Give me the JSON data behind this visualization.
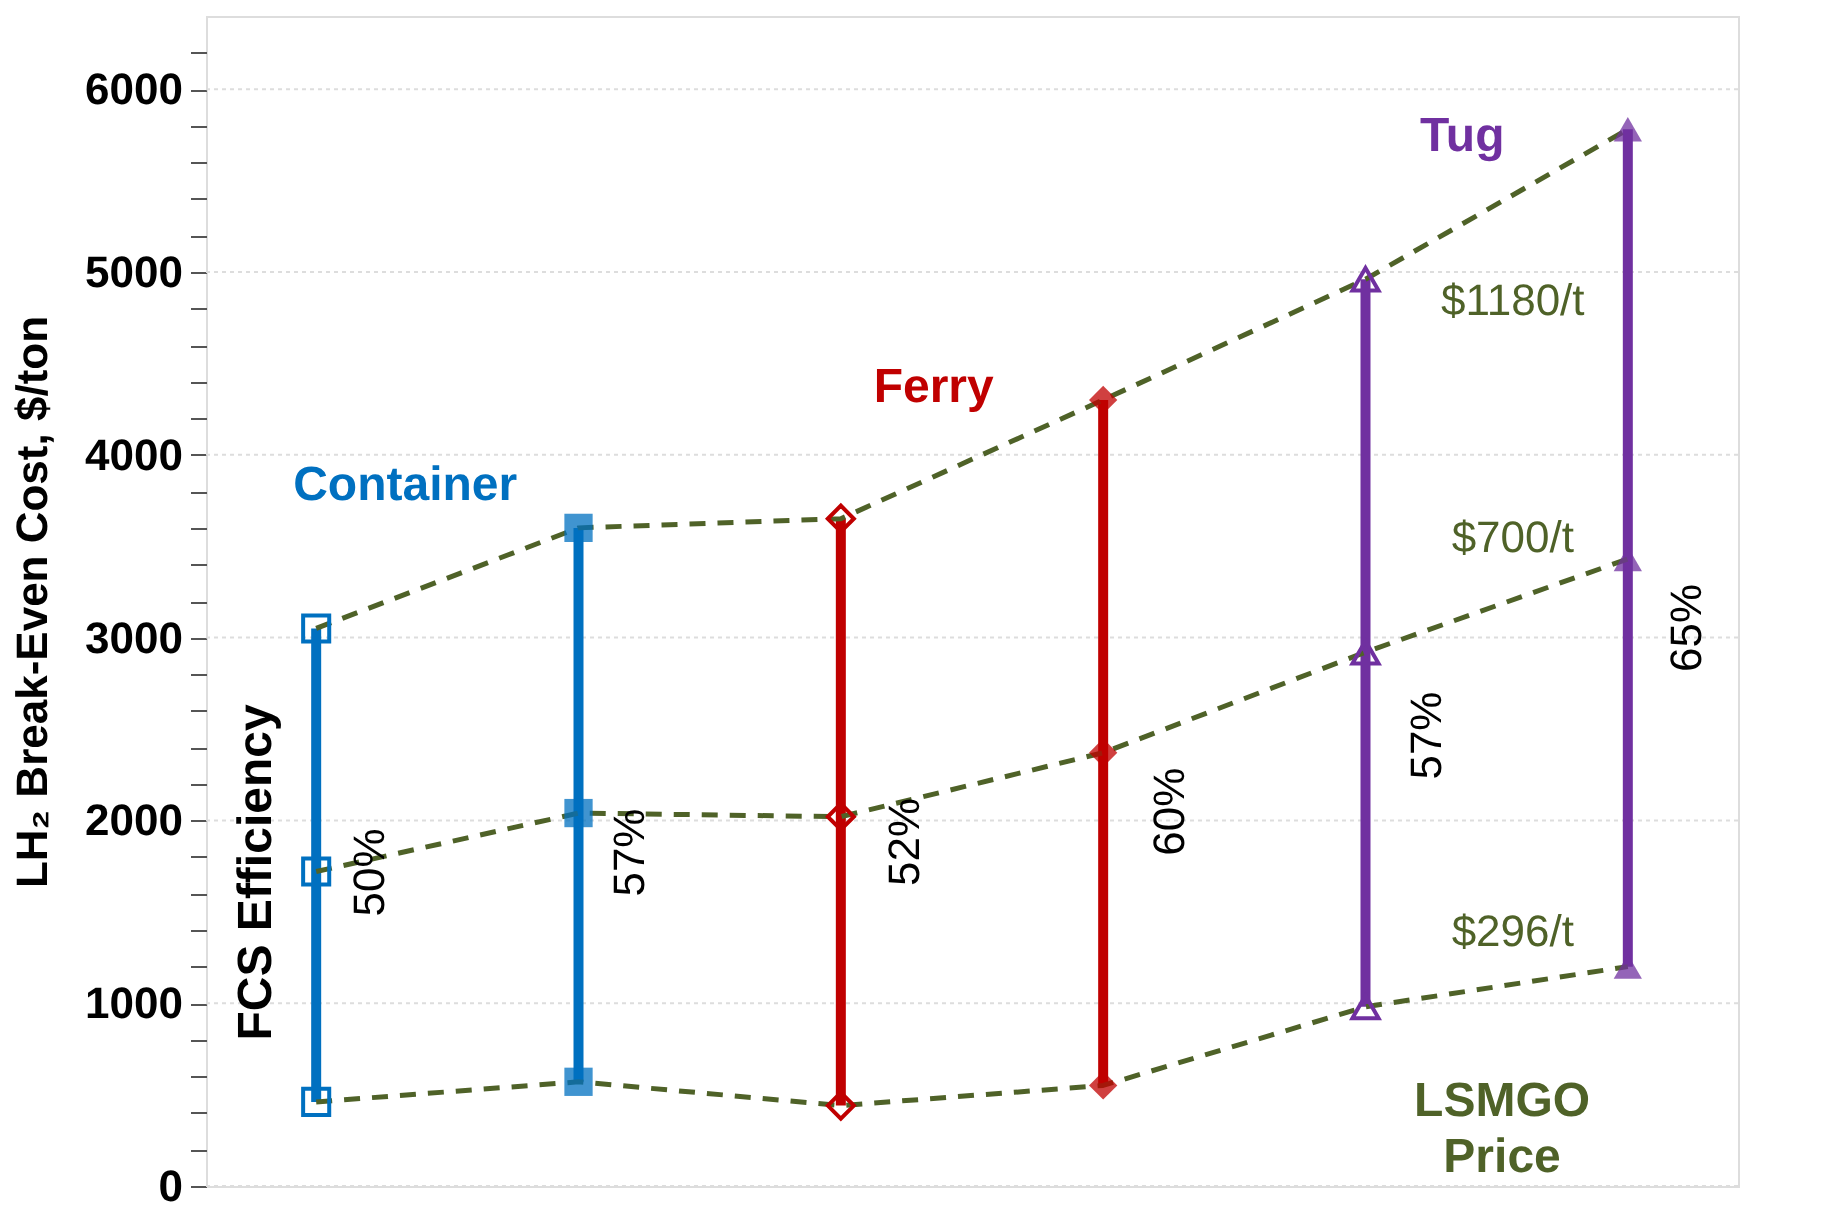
{
  "chart_data": {
    "type": "line",
    "ylabel": "LH₂ Break-Even Cost, $/ton",
    "categories": [
      null,
      null,
      null,
      null,
      null,
      null
    ],
    "tick_labels": "y",
    "ylim": [
      0,
      6400
    ],
    "yticks": [
      0,
      {
        "value": 200,
        "label": null
      },
      {
        "value": 400,
        "label": null
      },
      {
        "value": 600,
        "label": null
      },
      {
        "value": 800,
        "label": null
      },
      1000,
      {
        "value": 1200,
        "label": null
      },
      {
        "value": 1400,
        "label": null
      },
      {
        "value": 1600,
        "label": null
      },
      {
        "value": 1800,
        "label": null
      },
      2000,
      {
        "value": 2200,
        "label": null
      },
      {
        "value": 2400,
        "label": null
      },
      {
        "value": 2600,
        "label": null
      },
      {
        "value": 2800,
        "label": null
      },
      3000,
      {
        "value": 3200,
        "label": null
      },
      {
        "value": 3400,
        "label": null
      },
      {
        "value": 3600,
        "label": null
      },
      {
        "value": 3800,
        "label": null
      },
      4000,
      {
        "value": 4200,
        "label": null
      },
      {
        "value": 4400,
        "label": null
      },
      {
        "value": 4600,
        "label": null
      },
      {
        "value": 4800,
        "label": null
      },
      5000,
      {
        "value": 5200,
        "label": null
      },
      {
        "value": 5400,
        "label": null
      },
      {
        "value": 5600,
        "label": null
      },
      {
        "value": 5800,
        "label": null
      },
      6000,
      {
        "value": 6200,
        "label": null
      }
    ],
    "grid": "y",
    "line_style": "dashed",
    "series": [
      {
        "type": "bar",
        "colors": [
          "#0070c0",
          "#0070c0",
          "#c00000",
          "#c00000",
          "#7030a0",
          "#7030a0"
        ],
        "base": [
          460,
          570,
          440,
          550,
          980,
          1200
        ],
        "values": [
          2590,
          3030,
          3210,
          3750,
          3980,
          4580
        ]
      },
      {
        "name": "$1180/t",
        "color": "#4f6228",
        "marker": "square",
        "colors": [
          "#0070c0",
          "#0070c0",
          "#c00000",
          "#c00000",
          "#7030a0",
          "#7030a0"
        ],
        "values": [
          3050,
          3600,
          3650,
          4300,
          4960,
          5780
        ]
      },
      {
        "name": "$700/t",
        "color": "#4f6228",
        "marker": "square",
        "colors": [
          "#0070c0",
          "#0070c0",
          "#c00000",
          "#c00000",
          "#7030a0",
          "#7030a0"
        ],
        "values": [
          1720,
          2040,
          2020,
          2370,
          2920,
          3430
        ]
      },
      {
        "name": "$296/t",
        "color": "#4f6228",
        "marker": "square",
        "colors": [
          "#0070c0",
          "#0070c0",
          "#c00000",
          "#c00000",
          "#7030a0",
          "#7030a0"
        ],
        "values": [
          460,
          570,
          440,
          550,
          980,
          1200
        ]
      }
    ],
    "annotations": [
      "Container",
      "Ferry",
      "Tug",
      "50%",
      "57%",
      "52%",
      "60%",
      "57%",
      "65%",
      "FCS Efficiency",
      "LSMGO\nPrice"
    ]
  }
}
